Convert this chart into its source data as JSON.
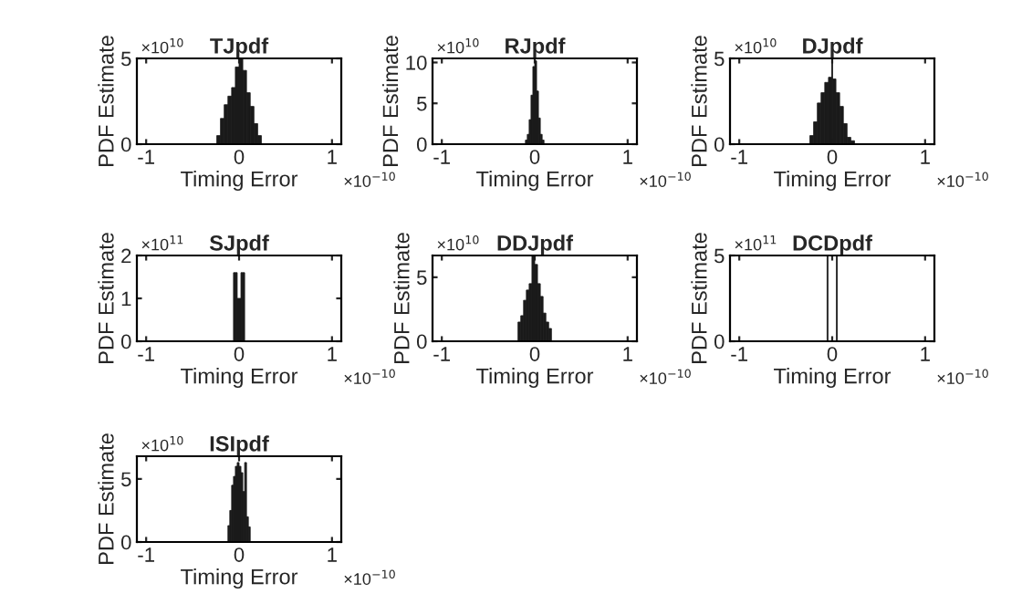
{
  "chart_data": [
    {
      "type": "histogram",
      "title": "TJpdf",
      "xlabel": "Timing Error",
      "ylabel": "PDF Estimate",
      "annotations": [
        "×10$^{10}$",
        "×10$^{−10}$"
      ],
      "bins": [
        -0.24,
        -0.2,
        -0.16,
        -0.12,
        -0.08,
        -0.04,
        0,
        0.04,
        0.08,
        0.12,
        0.16,
        0.2,
        0.24
      ],
      "values": [
        0.5,
        1.5,
        2.3,
        2.8,
        3.3,
        4.5,
        5.0,
        4.3,
        3.0,
        2.2,
        1.2,
        0.5
      ],
      "color": "#1a1a1a",
      "xlim": [
        -1.1,
        1.1
      ],
      "xticks": [
        -1,
        0,
        1
      ],
      "ylim": [
        0,
        5
      ],
      "yticks": [
        0,
        5
      ],
      "grid": false
    },
    {
      "type": "histogram",
      "title": "RJpdf",
      "xlabel": "Timing Error",
      "ylabel": "PDF Estimate",
      "annotations": [
        "×10$^{10}$",
        "×10$^{−10}$"
      ],
      "bins": [
        -0.1,
        -0.08,
        -0.06,
        -0.04,
        -0.02,
        0,
        0.02,
        0.04,
        0.06,
        0.08,
        0.1
      ],
      "values": [
        0.5,
        1.2,
        3.0,
        6.0,
        9.5,
        10.2,
        6.5,
        3.2,
        1.2,
        0.5
      ],
      "color": "#1a1a1a",
      "xlim": [
        -1.1,
        1.1
      ],
      "xticks": [
        -1,
        0,
        1
      ],
      "ylim": [
        0,
        10.5
      ],
      "yticks": [
        0,
        5,
        10
      ],
      "grid": false
    },
    {
      "type": "histogram",
      "title": "DJpdf",
      "xlabel": "Timing Error",
      "ylabel": "PDF Estimate",
      "annotations": [
        "×10$^{10}$",
        "×10$^{−10}$"
      ],
      "bins": [
        -0.24,
        -0.2,
        -0.16,
        -0.12,
        -0.08,
        -0.04,
        -0.005,
        0.005,
        0.04,
        0.08,
        0.12,
        0.16,
        0.2,
        0.24
      ],
      "values": [
        0.5,
        1.3,
        2.4,
        3.0,
        3.6,
        3.9,
        5.0,
        3.8,
        3.0,
        2.2,
        1.2,
        0.4,
        0.2
      ],
      "color": "#1a1a1a",
      "xlim": [
        -1.1,
        1.1
      ],
      "xticks": [
        -1,
        0,
        1
      ],
      "ylim": [
        0,
        5
      ],
      "yticks": [
        0,
        5
      ],
      "grid": false
    },
    {
      "type": "histogram",
      "title": "SJpdf",
      "xlabel": "Timing Error",
      "ylabel": "PDF Estimate",
      "annotations": [
        "×10$^{11}$",
        "×10$^{−10}$"
      ],
      "bins": [
        -0.06,
        -0.02,
        0.02,
        0.06
      ],
      "values": [
        1.6,
        1.0,
        1.6
      ],
      "color": "#1a1a1a",
      "xlim": [
        -1.1,
        1.1
      ],
      "xticks": [
        -1,
        0,
        1
      ],
      "ylim": [
        0,
        2
      ],
      "yticks": [
        0,
        1,
        2
      ],
      "grid": false
    },
    {
      "type": "histogram",
      "title": "DDJpdf",
      "xlabel": "Timing Error",
      "ylabel": "PDF Estimate",
      "annotations": [
        "×10$^{10}$",
        "×10$^{−10}$"
      ],
      "bins": [
        -0.18,
        -0.15,
        -0.12,
        -0.09,
        -0.06,
        -0.03,
        0,
        0.03,
        0.06,
        0.09,
        0.12,
        0.15,
        0.18
      ],
      "values": [
        1.5,
        2.0,
        3.2,
        4.0,
        4.5,
        6.7,
        6.0,
        4.5,
        3.5,
        2.2,
        1.5,
        1.0
      ],
      "color": "#1a1a1a",
      "xlim": [
        -1.1,
        1.1
      ],
      "xticks": [
        -1,
        0,
        1
      ],
      "ylim": [
        0,
        6.7
      ],
      "yticks": [
        0,
        5
      ],
      "grid": false
    },
    {
      "type": "histogram",
      "title": "DCDpdf",
      "xlabel": "Timing Error",
      "ylabel": "PDF Estimate",
      "annotations": [
        "×10$^{11}$",
        "×10$^{−10}$"
      ],
      "bins": [
        -0.055,
        -0.045,
        0.045,
        0.055
      ],
      "values": [
        5,
        0,
        5
      ],
      "color": "#1a1a1a",
      "xlim": [
        -1.1,
        1.1
      ],
      "xticks": [
        -1,
        0,
        1
      ],
      "ylim": [
        0,
        5
      ],
      "yticks": [
        0,
        5
      ],
      "grid": false
    },
    {
      "type": "histogram",
      "title": "ISIpdf",
      "xlabel": "Timing Error",
      "ylabel": "PDF Estimate",
      "annotations": [
        "×10$^{10}$",
        "×10$^{−10}$"
      ],
      "bins": [
        -0.12,
        -0.1,
        -0.08,
        -0.06,
        -0.04,
        -0.02,
        0,
        0.02,
        0.04,
        0.06,
        0.08,
        0.1,
        0.12
      ],
      "values": [
        1.3,
        2.5,
        4.5,
        5.2,
        6.0,
        6.3,
        6.0,
        5.5,
        4.0,
        6.3,
        2.0,
        1.2
      ],
      "color": "#1a1a1a",
      "xlim": [
        -1.1,
        1.1
      ],
      "xticks": [
        -1,
        0,
        1
      ],
      "ylim": [
        0,
        6.8
      ],
      "yticks": [
        0,
        5
      ],
      "grid": false
    }
  ]
}
